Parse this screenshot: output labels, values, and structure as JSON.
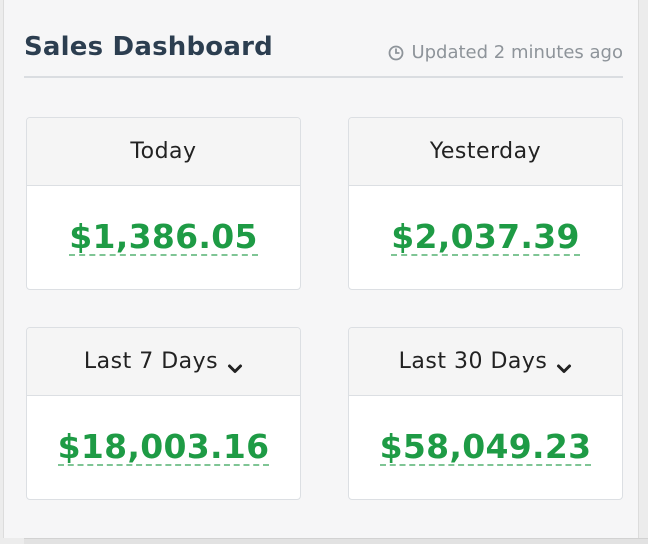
{
  "header": {
    "title": "Sales Dashboard",
    "updated": "Updated 2 minutes ago",
    "updated_icon": "clock-icon"
  },
  "cards": [
    {
      "label": "Today",
      "value": "$1,386.05",
      "has_dropdown": false
    },
    {
      "label": "Yesterday",
      "value": "$2,037.39",
      "has_dropdown": false
    },
    {
      "label": "Last 7 Days",
      "value": "$18,003.16",
      "has_dropdown": true
    },
    {
      "label": "Last 30 Days",
      "value": "$58,049.23",
      "has_dropdown": true
    }
  ],
  "colors": {
    "title": "#2c3e50",
    "amount": "#1e9b45",
    "muted": "#8e949a"
  }
}
